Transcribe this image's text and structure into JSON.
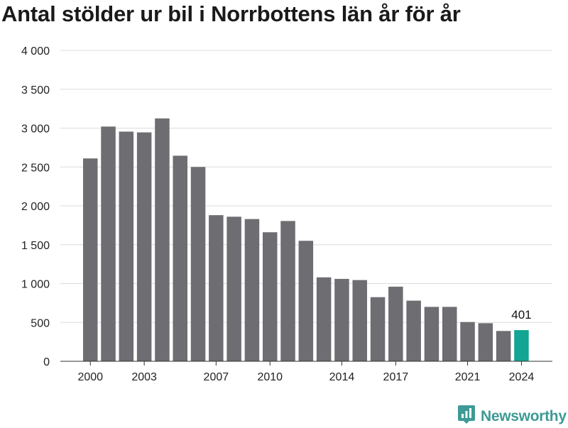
{
  "title": "Antal stölder ur bil i Norrbottens län år för år",
  "brand": {
    "name": "Newsworthy",
    "icon": "newsworthy-logo-icon"
  },
  "colors": {
    "bar": "#6d6d72",
    "highlight": "#12a593",
    "grid": "#dcdcdc",
    "axis": "#333333",
    "brand": "#3e9a95"
  },
  "chart_data": {
    "type": "bar",
    "title": "Antal stölder ur bil i Norrbottens län år för år",
    "categories": [
      "2000",
      "2001",
      "2002",
      "2003",
      "2004",
      "2005",
      "2006",
      "2007",
      "2008",
      "2009",
      "2010",
      "2011",
      "2012",
      "2013",
      "2014",
      "2015",
      "2016",
      "2017",
      "2018",
      "2019",
      "2020",
      "2021",
      "2022",
      "2023",
      "2024"
    ],
    "values": [
      2610,
      3020,
      2955,
      2945,
      3125,
      2645,
      2500,
      1880,
      1860,
      1830,
      1660,
      1805,
      1550,
      1080,
      1060,
      1045,
      825,
      960,
      780,
      700,
      700,
      505,
      490,
      390,
      401
    ],
    "ylim": [
      0,
      4000
    ],
    "yticks": [
      0,
      500,
      1000,
      1500,
      2000,
      2500,
      3000,
      3500,
      4000
    ],
    "ytick_labels": [
      "0",
      "500",
      "1 000",
      "1 500",
      "2 000",
      "2 500",
      "3 000",
      "3 500",
      "4 000"
    ],
    "xtick_labels": [
      "2000",
      "2003",
      "2007",
      "2010",
      "2014",
      "2017",
      "2021",
      "2024"
    ],
    "highlight_category": "2024",
    "annotations": [
      {
        "category": "2024",
        "text": "401"
      }
    ],
    "grid": true,
    "legend": "none",
    "xlabel": "",
    "ylabel": ""
  }
}
